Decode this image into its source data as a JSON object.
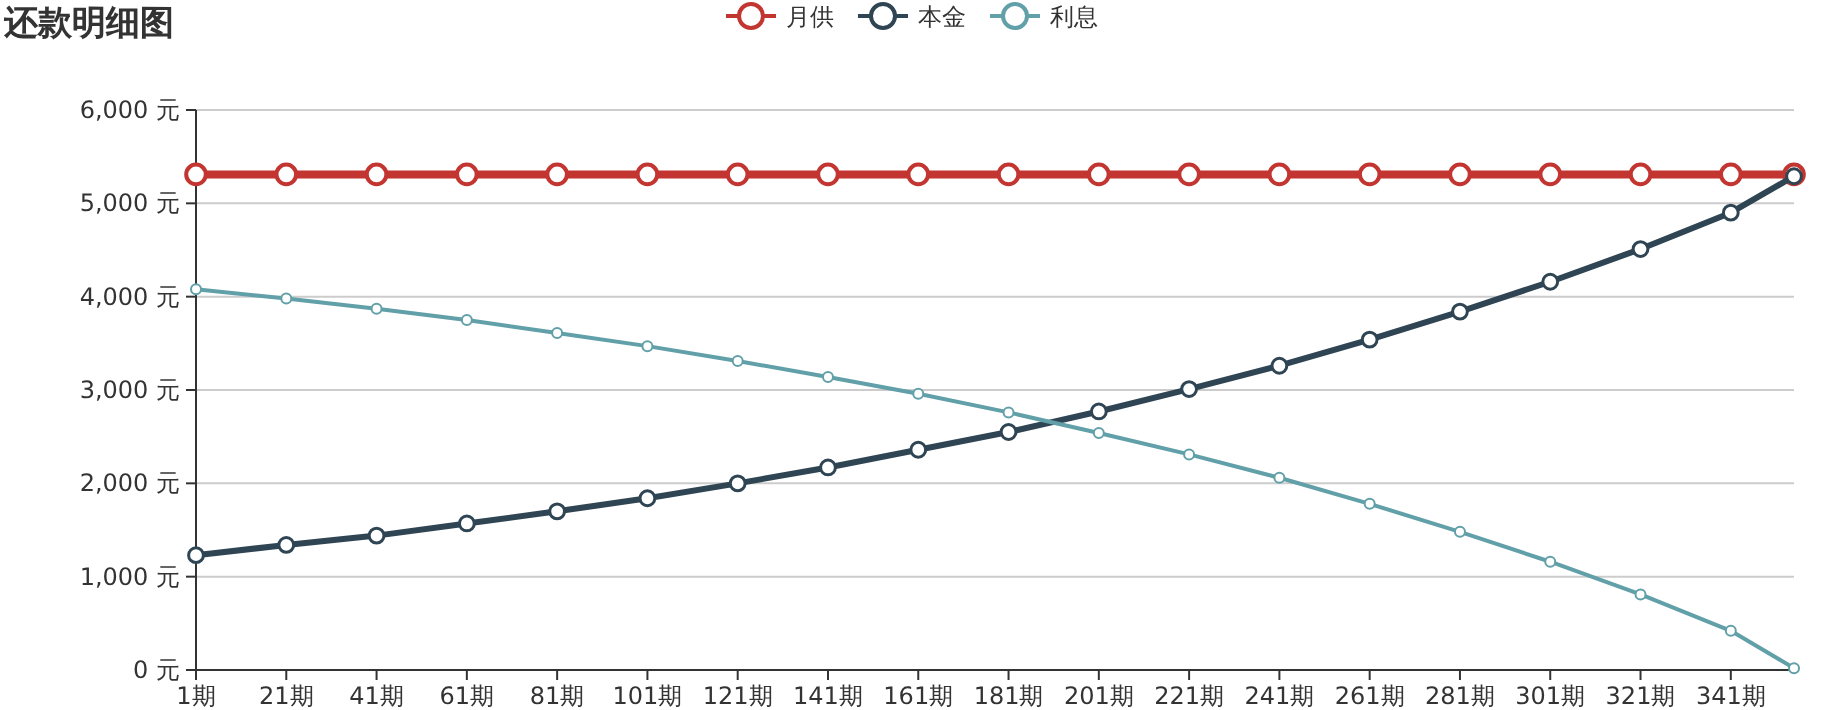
{
  "chart_data": {
    "type": "line",
    "title": "还款明细图",
    "x": [
      1,
      21,
      41,
      61,
      81,
      101,
      121,
      141,
      161,
      181,
      201,
      221,
      241,
      261,
      281,
      301,
      321,
      341,
      355
    ],
    "series": [
      {
        "name": "月供",
        "color": "#c23531",
        "values": [
          5310,
          5310,
          5310,
          5310,
          5310,
          5310,
          5310,
          5310,
          5310,
          5310,
          5310,
          5310,
          5310,
          5310,
          5310,
          5310,
          5310,
          5310,
          5310
        ]
      },
      {
        "name": "本金",
        "color": "#2f4554",
        "values": [
          1230,
          1340,
          1440,
          1570,
          1700,
          1840,
          2000,
          2170,
          2360,
          2550,
          2770,
          3010,
          3260,
          3540,
          3840,
          4160,
          4510,
          4900,
          5290
        ]
      },
      {
        "name": "利息",
        "color": "#61a0a8",
        "values": [
          4080,
          3980,
          3870,
          3750,
          3610,
          3470,
          3310,
          3140,
          2960,
          2760,
          2540,
          2310,
          2060,
          1780,
          1480,
          1160,
          810,
          420,
          20
        ]
      }
    ],
    "xlim": [
      1,
      355
    ],
    "xticks": [
      {
        "value": 1,
        "label": "1期"
      },
      {
        "value": 21,
        "label": "21期"
      },
      {
        "value": 41,
        "label": "41期"
      },
      {
        "value": 61,
        "label": "61期"
      },
      {
        "value": 81,
        "label": "81期"
      },
      {
        "value": 101,
        "label": "101期"
      },
      {
        "value": 121,
        "label": "121期"
      },
      {
        "value": 141,
        "label": "141期"
      },
      {
        "value": 161,
        "label": "161期"
      },
      {
        "value": 181,
        "label": "181期"
      },
      {
        "value": 201,
        "label": "201期"
      },
      {
        "value": 221,
        "label": "221期"
      },
      {
        "value": 241,
        "label": "241期"
      },
      {
        "value": 261,
        "label": "261期"
      },
      {
        "value": 281,
        "label": "281期"
      },
      {
        "value": 301,
        "label": "301期"
      },
      {
        "value": 321,
        "label": "321期"
      },
      {
        "value": 341,
        "label": "341期"
      }
    ],
    "ylim": [
      0,
      6000
    ],
    "yticks": [
      {
        "value": 0,
        "label": "0 元"
      },
      {
        "value": 1000,
        "label": "1,000 元"
      },
      {
        "value": 2000,
        "label": "2,000 元"
      },
      {
        "value": 3000,
        "label": "3,000 元"
      },
      {
        "value": 4000,
        "label": "4,000 元"
      },
      {
        "value": 5000,
        "label": "5,000 元"
      },
      {
        "value": 6000,
        "label": "6,000 元"
      }
    ],
    "grid": "y",
    "legend": "top",
    "marker": "circle"
  }
}
